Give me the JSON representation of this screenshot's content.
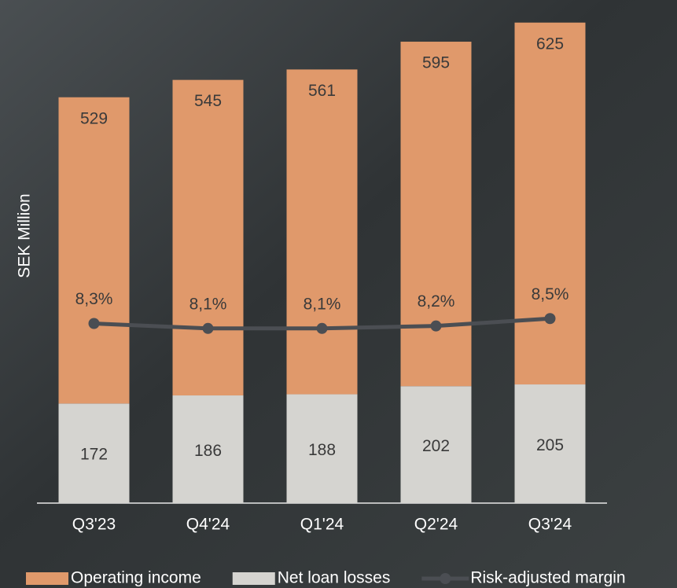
{
  "chart_data": {
    "type": "bar",
    "stacked": true,
    "y_label": "SEK Million",
    "categories": [
      "Q3'23",
      "Q4'24",
      "Q1'24",
      "Q2'24",
      "Q3'24"
    ],
    "ylim": [
      0,
      850
    ],
    "y2lim": [
      1,
      21
    ],
    "series": [
      {
        "name": "Operating income",
        "color": "#e0996b",
        "values": [
          529,
          545,
          561,
          595,
          625
        ]
      },
      {
        "name": "Net loan losses",
        "color": "#d5d4d0",
        "values": [
          172,
          186,
          188,
          202,
          205
        ]
      },
      {
        "name": "Risk-adjusted margin",
        "type": "line",
        "axis": "y2",
        "color": "#4b4e53",
        "values": [
          8.3,
          8.1,
          8.1,
          8.2,
          8.5
        ],
        "value_labels": [
          "8,3%",
          "8,1%",
          "8,1%",
          "8,2%",
          "8,5%"
        ]
      }
    ],
    "legend": "bottom"
  }
}
